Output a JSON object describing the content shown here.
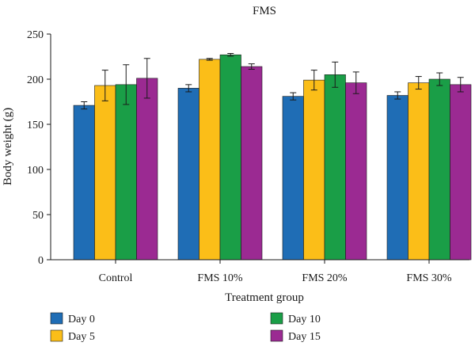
{
  "chart_data": {
    "type": "bar",
    "title": "FMS",
    "xlabel": "Treatment group",
    "ylabel": "Body weight (g)",
    "ylim": [
      0,
      250
    ],
    "yticks": [
      0,
      50,
      100,
      150,
      200,
      250
    ],
    "categories": [
      "Control",
      "FMS 10%",
      "FMS 20%",
      "FMS 30%"
    ],
    "legend_position": "bottom",
    "series": [
      {
        "name": "Day 0",
        "color": "#1f6db5",
        "values": [
          171,
          190,
          181,
          182
        ],
        "errors": [
          4,
          4,
          4,
          4
        ]
      },
      {
        "name": "Day 5",
        "color": "#fbbe18",
        "values": [
          193,
          222,
          199,
          196
        ],
        "errors": [
          17,
          1,
          11,
          7
        ]
      },
      {
        "name": "Day 10",
        "color": "#1a9e47",
        "values": [
          194,
          227,
          205,
          200
        ],
        "errors": [
          22,
          1.5,
          14,
          7
        ]
      },
      {
        "name": "Day 15",
        "color": "#9b2a92",
        "values": [
          201,
          214,
          196,
          194
        ],
        "errors": [
          22,
          3,
          12,
          8
        ]
      }
    ]
  }
}
